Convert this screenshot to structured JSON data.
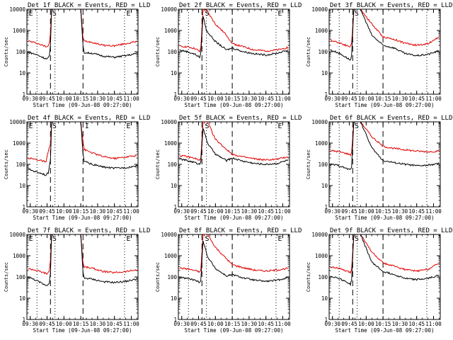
{
  "figure": {
    "start_time_label": "Start Time (09-Jun-08 09:27:00)",
    "ylabel": "Counts/sec",
    "x_tick_labels": [
      "09:30",
      "09:45",
      "10:00",
      "10:15",
      "10:30",
      "10:45",
      "11:00"
    ],
    "y_tick_labels": [
      "1",
      "10",
      "100",
      "1000",
      "10000"
    ],
    "series_colors": {
      "events": "#000000",
      "lld": "#e00000"
    }
  },
  "chart_data": [
    {
      "type": "line",
      "title": "Det 1f BLACK = Events, RED = LLD",
      "xlim": [
        "09:27",
        "11:06"
      ],
      "ylim": [
        1,
        10000
      ],
      "yscale": "log",
      "xlabel": "Start Time (09-Jun-08 09:27:00)",
      "ylabel": "Counts/sec",
      "markers": {
        "dotted": [
          "09:36",
          "09:52",
          "10:54"
        ],
        "dashed": [
          "09:48",
          "10:17"
        ],
        "letters": [
          {
            "text": "E",
            "x": "09:28"
          },
          {
            "text": "S",
            "x": "09:49"
          },
          {
            "text": "E",
            "x": "10:55"
          }
        ]
      },
      "series": [
        {
          "x": [
            "09:28",
            "09:35",
            "09:42",
            "09:45",
            "09:47",
            "09:48",
            "09:49",
            "10:15",
            "10:17",
            "10:18",
            "10:25",
            "10:35",
            "10:45",
            "10:55",
            "11:05"
          ],
          "values": [
            320,
            260,
            190,
            170,
            260,
            800,
            10000,
            10000,
            420,
            330,
            280,
            200,
            190,
            240,
            300
          ]
        },
        {
          "x": [
            "09:28",
            "09:35",
            "09:42",
            "09:45",
            "09:47",
            "09:48",
            "09:49",
            "10:15",
            "10:17",
            "10:18",
            "10:25",
            "10:35",
            "10:45",
            "10:55",
            "11:05"
          ],
          "values": [
            95,
            75,
            52,
            45,
            60,
            200,
            10000,
            10000,
            180,
            90,
            85,
            62,
            55,
            65,
            82
          ]
        }
      ]
    },
    {
      "type": "line",
      "title": "Det 2f BLACK = Events, RED = LLD",
      "xlim": [
        "09:27",
        "11:06"
      ],
      "ylim": [
        1,
        10000
      ],
      "yscale": "log",
      "xlabel": "Start Time (09-Jun-08 09:27:00)",
      "ylabel": "Counts/sec",
      "markers": {
        "dotted": [
          "09:36",
          "09:52",
          "10:54"
        ],
        "dashed": [
          "09:48",
          "10:15"
        ],
        "letters": [
          {
            "text": "S",
            "x": "09:50"
          },
          {
            "text": "E",
            "x": "10:55"
          }
        ]
      },
      "series": [
        {
          "x": [
            "09:28",
            "09:35",
            "09:42",
            "09:46",
            "09:47",
            "09:49",
            "09:52",
            "10:00",
            "10:10",
            "10:15",
            "10:25",
            "10:35",
            "10:45",
            "10:55",
            "11:05"
          ],
          "values": [
            180,
            170,
            140,
            100,
            150,
            10000,
            9000,
            2000,
            600,
            240,
            170,
            120,
            110,
            120,
            160
          ]
        },
        {
          "x": [
            "09:28",
            "09:35",
            "09:42",
            "09:46",
            "09:47",
            "09:49",
            "09:52",
            "10:00",
            "10:10",
            "10:15",
            "10:25",
            "10:35",
            "10:45",
            "10:55",
            "11:05"
          ],
          "values": [
            120,
            100,
            75,
            55,
            80,
            5000,
            1000,
            300,
            120,
            150,
            100,
            80,
            70,
            85,
            120
          ]
        }
      ]
    },
    {
      "type": "line",
      "title": "Det 3f BLACK = Events, RED = LLD",
      "xlim": [
        "09:27",
        "11:06"
      ],
      "ylim": [
        1,
        10000
      ],
      "yscale": "log",
      "xlabel": "Start Time (09-Jun-08 09:27:00)",
      "ylabel": "Counts/sec",
      "markers": {
        "dotted": [
          "09:36",
          "09:52",
          "10:54"
        ],
        "dashed": [
          "09:48",
          "10:15"
        ],
        "letters": [
          {
            "text": "S",
            "x": "09:49"
          }
        ]
      },
      "series": [
        {
          "x": [
            "09:28",
            "09:35",
            "09:42",
            "09:46",
            "09:47",
            "09:49",
            "09:55",
            "10:05",
            "10:15",
            "10:25",
            "10:35",
            "10:45",
            "10:55",
            "11:05"
          ],
          "values": [
            350,
            280,
            200,
            170,
            250,
            10000,
            10000,
            2000,
            500,
            380,
            250,
            200,
            240,
            500
          ]
        },
        {
          "x": [
            "09:28",
            "09:35",
            "09:42",
            "09:46",
            "09:47",
            "09:49",
            "09:55",
            "10:05",
            "10:15",
            "10:25",
            "10:35",
            "10:45",
            "10:55",
            "11:05"
          ],
          "values": [
            120,
            90,
            55,
            40,
            60,
            10000,
            10000,
            600,
            200,
            150,
            80,
            65,
            75,
            110
          ]
        }
      ]
    },
    {
      "type": "line",
      "title": "Det 4f BLACK = Events, RED = LLD",
      "xlim": [
        "09:27",
        "11:06"
      ],
      "ylim": [
        1,
        10000
      ],
      "yscale": "log",
      "xlabel": "Start Time (09-Jun-08 09:27:00)",
      "ylabel": "Counts/sec",
      "markers": {
        "dotted": [
          "09:36",
          "09:52",
          "10:54"
        ],
        "dashed": [
          "09:48",
          "10:17"
        ],
        "letters": [
          {
            "text": "E",
            "x": "09:28"
          },
          {
            "text": "S",
            "x": "09:49"
          },
          {
            "text": "I",
            "x": "10:18"
          },
          {
            "text": "E",
            "x": "10:55"
          }
        ]
      },
      "series": [
        {
          "x": [
            "09:28",
            "09:35",
            "09:42",
            "09:44",
            "09:46",
            "09:48",
            "09:49",
            "10:15",
            "10:17",
            "10:18",
            "10:25",
            "10:35",
            "10:45",
            "10:55",
            "11:05"
          ],
          "values": [
            200,
            170,
            140,
            120,
            400,
            900,
            10000,
            10000,
            1200,
            500,
            350,
            230,
            190,
            220,
            260
          ]
        },
        {
          "x": [
            "09:28",
            "09:35",
            "09:42",
            "09:44",
            "09:46",
            "09:48",
            "09:49",
            "10:15",
            "10:17",
            "10:18",
            "10:25",
            "10:35",
            "10:45",
            "10:55",
            "11:05"
          ],
          "values": [
            60,
            45,
            35,
            30,
            40,
            150,
            10000,
            10000,
            300,
            140,
            100,
            75,
            65,
            70,
            85
          ]
        }
      ]
    },
    {
      "type": "line",
      "title": "Det 5f BLACK = Events, RED = LLD",
      "xlim": [
        "09:27",
        "11:06"
      ],
      "ylim": [
        1,
        10000
      ],
      "yscale": "log",
      "xlabel": "Start Time (09-Jun-08 09:27:00)",
      "ylabel": "Counts/sec",
      "markers": {
        "dotted": [
          "09:36",
          "09:52",
          "10:54"
        ],
        "dashed": [
          "09:48",
          "10:15"
        ],
        "letters": [
          {
            "text": "S",
            "x": "09:50"
          },
          {
            "text": "E",
            "x": "10:55"
          }
        ]
      },
      "series": [
        {
          "x": [
            "09:28",
            "09:35",
            "09:42",
            "09:46",
            "09:47",
            "09:49",
            "09:53",
            "10:00",
            "10:10",
            "10:15",
            "10:25",
            "10:35",
            "10:45",
            "10:55",
            "11:05"
          ],
          "values": [
            260,
            230,
            190,
            150,
            200,
            10000,
            10000,
            1500,
            500,
            300,
            220,
            180,
            160,
            175,
            230
          ]
        },
        {
          "x": [
            "09:28",
            "09:35",
            "09:42",
            "09:46",
            "09:47",
            "09:49",
            "09:53",
            "10:00",
            "10:10",
            "10:15",
            "10:25",
            "10:35",
            "10:45",
            "10:55",
            "11:05"
          ],
          "values": [
            180,
            150,
            120,
            100,
            140,
            5000,
            1000,
            300,
            150,
            200,
            140,
            110,
            100,
            110,
            160
          ]
        }
      ]
    },
    {
      "type": "line",
      "title": "Det 6f BLACK = Events, RED = LLD",
      "xlim": [
        "09:27",
        "11:06"
      ],
      "ylim": [
        1,
        10000
      ],
      "yscale": "log",
      "xlabel": "Start Time (09-Jun-08 09:27:00)",
      "ylabel": "Counts/sec",
      "markers": {
        "dotted": [
          "09:36",
          "09:52",
          "10:54"
        ],
        "dashed": [
          "09:48",
          "10:15"
        ],
        "letters": [
          {
            "text": "S",
            "x": "09:49"
          }
        ]
      },
      "series": [
        {
          "x": [
            "09:28",
            "09:35",
            "09:42",
            "09:46",
            "09:47",
            "09:49",
            "09:55",
            "10:05",
            "10:15",
            "10:25",
            "10:35",
            "10:45",
            "10:55",
            "11:05"
          ],
          "values": [
            440,
            400,
            330,
            280,
            350,
            10000,
            10000,
            2000,
            700,
            560,
            480,
            420,
            390,
            420
          ]
        },
        {
          "x": [
            "09:28",
            "09:35",
            "09:42",
            "09:46",
            "09:47",
            "09:49",
            "09:55",
            "10:05",
            "10:15",
            "10:25",
            "10:35",
            "10:45",
            "10:55",
            "11:05"
          ],
          "values": [
            100,
            90,
            65,
            55,
            80,
            10000,
            10000,
            600,
            150,
            120,
            100,
            85,
            90,
            110
          ]
        }
      ]
    },
    {
      "type": "line",
      "title": "Det 7f BLACK = Events, RED = LLD",
      "xlim": [
        "09:27",
        "11:06"
      ],
      "ylim": [
        1,
        10000
      ],
      "yscale": "log",
      "xlabel": "Start Time (09-Jun-08 09:27:00)",
      "ylabel": "Counts/sec",
      "markers": {
        "dotted": [
          "09:36",
          "09:52",
          "10:54"
        ],
        "dashed": [
          "09:48",
          "10:17"
        ],
        "letters": [
          {
            "text": "E",
            "x": "09:28"
          },
          {
            "text": "S",
            "x": "09:49"
          },
          {
            "text": "E",
            "x": "10:55"
          }
        ]
      },
      "series": [
        {
          "x": [
            "09:28",
            "09:35",
            "09:42",
            "09:45",
            "09:47",
            "09:48",
            "09:49",
            "10:15",
            "10:17",
            "10:18",
            "10:25",
            "10:35",
            "10:45",
            "10:55",
            "11:05"
          ],
          "values": [
            250,
            210,
            160,
            140,
            200,
            700,
            10000,
            10000,
            450,
            300,
            260,
            180,
            160,
            180,
            220
          ]
        },
        {
          "x": [
            "09:28",
            "09:35",
            "09:42",
            "09:45",
            "09:47",
            "09:48",
            "09:49",
            "10:15",
            "10:17",
            "10:18",
            "10:25",
            "10:35",
            "10:45",
            "10:55",
            "11:05"
          ],
          "values": [
            100,
            70,
            45,
            40,
            55,
            150,
            10000,
            10000,
            160,
            90,
            80,
            60,
            55,
            62,
            80
          ]
        }
      ]
    },
    {
      "type": "line",
      "title": "Det 8f BLACK = Events, RED = LLD",
      "xlim": [
        "09:27",
        "11:06"
      ],
      "ylim": [
        1,
        10000
      ],
      "yscale": "log",
      "xlabel": "Start Time (09-Jun-08 09:27:00)",
      "ylabel": "Counts/sec",
      "markers": {
        "dotted": [
          "09:36",
          "09:52",
          "10:54"
        ],
        "dashed": [
          "09:48",
          "10:15"
        ],
        "letters": [
          {
            "text": "S",
            "x": "09:50"
          },
          {
            "text": "E",
            "x": "10:55"
          }
        ]
      },
      "series": [
        {
          "x": [
            "09:28",
            "09:35",
            "09:42",
            "09:46",
            "09:47",
            "09:49",
            "09:53",
            "10:00",
            "10:10",
            "10:15",
            "10:25",
            "10:35",
            "10:45",
            "10:55",
            "11:05"
          ],
          "values": [
            260,
            240,
            200,
            170,
            220,
            10000,
            10000,
            2500,
            700,
            380,
            270,
            210,
            190,
            210,
            260
          ]
        },
        {
          "x": [
            "09:28",
            "09:35",
            "09:42",
            "09:46",
            "09:47",
            "09:49",
            "09:53",
            "10:00",
            "10:10",
            "10:15",
            "10:25",
            "10:35",
            "10:45",
            "10:55",
            "11:05"
          ],
          "values": [
            95,
            85,
            70,
            55,
            75,
            5000,
            900,
            250,
            110,
            130,
            90,
            70,
            62,
            70,
            95
          ]
        }
      ]
    },
    {
      "type": "line",
      "title": "Det 9f BLACK = Events, RED = LLD",
      "xlim": [
        "09:27",
        "11:06"
      ],
      "ylim": [
        1,
        10000
      ],
      "yscale": "log",
      "xlabel": "Start Time (09-Jun-08 09:27:00)",
      "ylabel": "Counts/sec",
      "markers": {
        "dotted": [
          "09:36",
          "09:52",
          "10:54"
        ],
        "dashed": [
          "09:48",
          "10:15"
        ],
        "letters": [
          {
            "text": "S",
            "x": "09:49"
          }
        ]
      },
      "series": [
        {
          "x": [
            "09:28",
            "09:35",
            "09:42",
            "09:46",
            "09:47",
            "09:49",
            "09:55",
            "10:05",
            "10:15",
            "10:25",
            "10:35",
            "10:45",
            "10:55",
            "11:05"
          ],
          "values": [
            300,
            260,
            190,
            160,
            230,
            10000,
            10000,
            1500,
            450,
            320,
            220,
            190,
            230,
            450
          ]
        },
        {
          "x": [
            "09:28",
            "09:35",
            "09:42",
            "09:46",
            "09:47",
            "09:49",
            "09:55",
            "10:05",
            "10:15",
            "10:25",
            "10:35",
            "10:45",
            "10:55",
            "11:05"
          ],
          "values": [
            110,
            90,
            60,
            45,
            70,
            10000,
            10000,
            500,
            180,
            130,
            85,
            75,
            85,
            120
          ]
        }
      ]
    }
  ]
}
